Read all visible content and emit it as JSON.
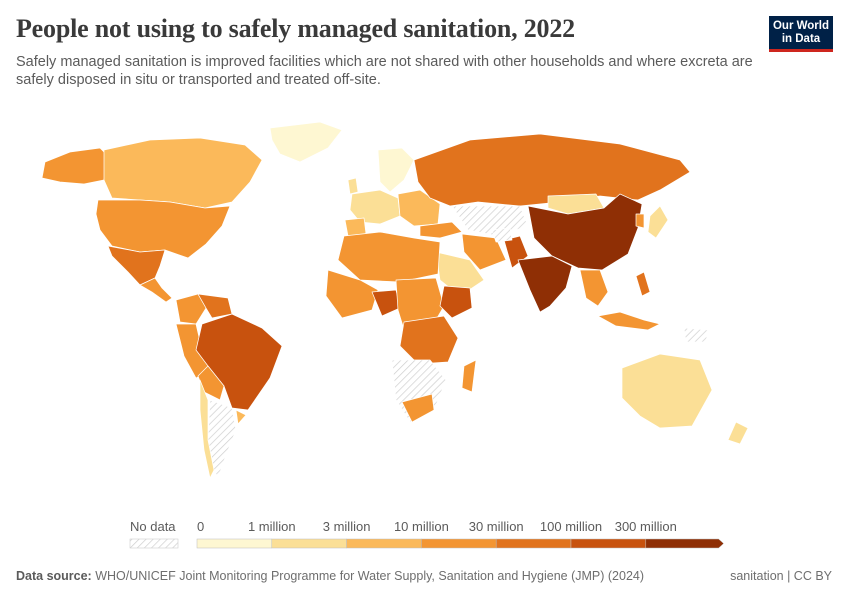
{
  "title": "People not using to safely managed sanitation, 2022",
  "subtitle": "Safely managed sanitation is improved facilities which are not shared with other households and where excreta are safely disposed in situ or transported and treated off-site.",
  "logo": {
    "line1": "Our World",
    "line2": "in Data"
  },
  "legend": {
    "no_data_label": "No data",
    "bins": [
      {
        "label": "0",
        "color": "#fef7d2"
      },
      {
        "label": "1 million",
        "color": "#fbdf96"
      },
      {
        "label": "3 million",
        "color": "#fbb95a"
      },
      {
        "label": "10 million",
        "color": "#f39532"
      },
      {
        "label": "30 million",
        "color": "#e1731d"
      },
      {
        "label": "100 million",
        "color": "#c8520e"
      },
      {
        "label": "300 million",
        "color": "#8f2f05"
      }
    ]
  },
  "colors": {
    "no_data_hatch": "#d5d5d5",
    "ocean": "#ffffff",
    "logo_bg": "#002147",
    "logo_accent": "#ce261e"
  },
  "footer": {
    "source_label": "Data source:",
    "source_text": "WHO/UNICEF Joint Monitoring Programme for Water Supply, Sanitation and Hygiene (JMP) (2024)",
    "right_text": "sanitation | CC BY"
  }
}
